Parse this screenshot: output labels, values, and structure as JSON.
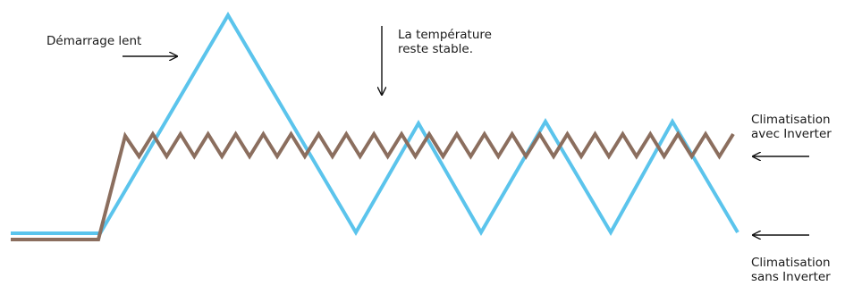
{
  "annotations": {
    "slow_start": "Démarrage lent",
    "stable_line1": "La température",
    "stable_line2": "reste stable.",
    "inverter_line1": "Climatisation",
    "inverter_line2": "avec Inverter",
    "non_inverter_line1": "Climatisation",
    "non_inverter_line2": "sans Inverter"
  },
  "colors": {
    "inverter": "#8B6E5E",
    "non_inverter": "#5BC4EC",
    "arrow": "#111111"
  }
}
